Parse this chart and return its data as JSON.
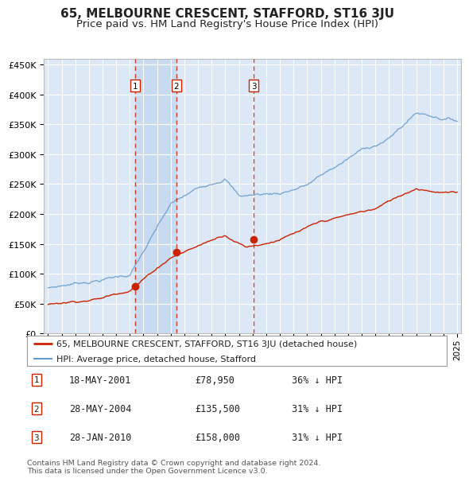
{
  "title": "65, MELBOURNE CRESCENT, STAFFORD, ST16 3JU",
  "subtitle": "Price paid vs. HM Land Registry's House Price Index (HPI)",
  "legend_label_red": "65, MELBOURNE CRESCENT, STAFFORD, ST16 3JU (detached house)",
  "legend_label_blue": "HPI: Average price, detached house, Stafford",
  "footer": "Contains HM Land Registry data © Crown copyright and database right 2024.\nThis data is licensed under the Open Government Licence v3.0.",
  "transactions": [
    {
      "num": 1,
      "date": "18-MAY-2001",
      "price": 78950,
      "pct": "36% ↓ HPI",
      "x": 2001.38
    },
    {
      "num": 2,
      "date": "28-MAY-2004",
      "price": 135500,
      "pct": "31% ↓ HPI",
      "x": 2004.41
    },
    {
      "num": 3,
      "date": "28-JAN-2010",
      "price": 158000,
      "pct": "31% ↓ HPI",
      "x": 2010.08
    }
  ],
  "ylim": [
    0,
    460000
  ],
  "xlim": [
    1994.7,
    2025.3
  ],
  "background_color": "#dce8f5",
  "shading_color": "#c8daf0",
  "red_color": "#cc2200",
  "blue_color": "#6699cc",
  "grid_color": "#ffffff",
  "title_fontsize": 11,
  "subtitle_fontsize": 9.5
}
